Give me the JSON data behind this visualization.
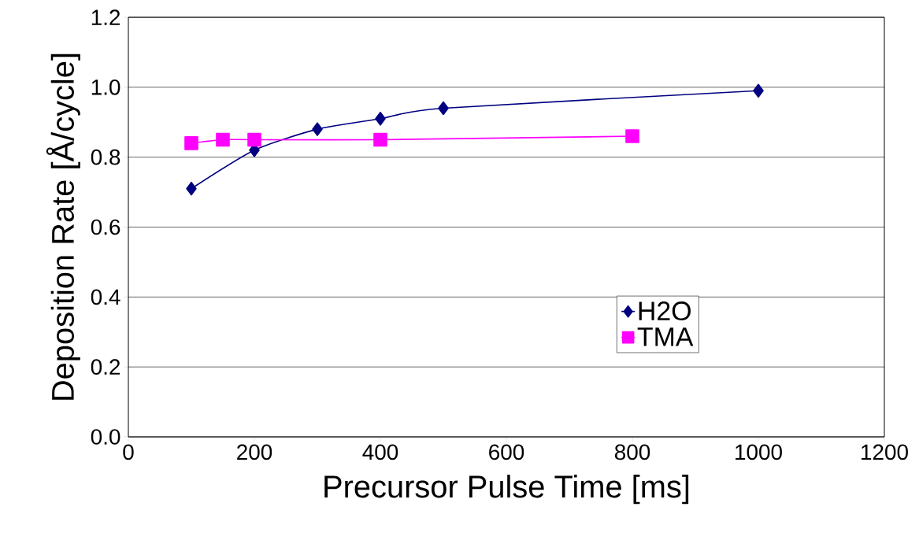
{
  "chart_data": {
    "type": "line",
    "xlabel": "Precursor Pulse Time [ms]",
    "ylabel": "Deposition Rate [Å/cycle]",
    "xlim": [
      0,
      1200
    ],
    "xticks": [
      0,
      200,
      400,
      600,
      800,
      1000,
      1200
    ],
    "ylim": [
      0,
      1.2
    ],
    "yticks": [
      {
        "value": 0,
        "label": "0.0"
      },
      {
        "value": 0.2,
        "label": "0.2"
      },
      {
        "value": 0.4,
        "label": "0.4"
      },
      {
        "value": 0.6,
        "label": "0.6"
      },
      {
        "value": 0.8,
        "label": "0.8"
      },
      {
        "value": 1.0,
        "label": "1.0"
      },
      {
        "value": 1.2,
        "label": "1.2"
      }
    ],
    "grid": "y",
    "legend": "right",
    "line_style": "solid",
    "series": [
      {
        "name": "H2O",
        "color": "#000080",
        "marker": "diamond",
        "x": [
          100,
          200,
          300,
          400,
          500,
          1000
        ],
        "values": [
          0.71,
          0.82,
          0.88,
          0.91,
          0.94,
          0.99
        ]
      },
      {
        "name": "TMA",
        "color": "#ff00ff",
        "marker": "square",
        "x": [
          100,
          150,
          200,
          400,
          800
        ],
        "values": [
          0.84,
          0.85,
          0.85,
          0.85,
          0.86
        ]
      }
    ]
  }
}
